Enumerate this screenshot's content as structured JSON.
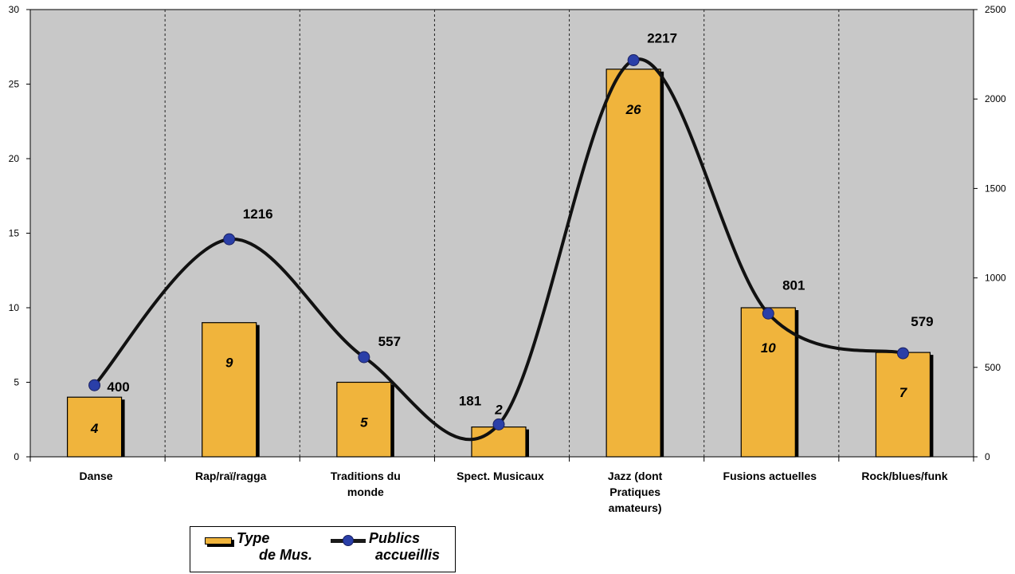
{
  "chart_data": {
    "type": "bar",
    "categories": [
      "Danse",
      "Rap/raï/ragga",
      "Traditions du monde",
      "Spect. Musicaux",
      "Jazz (dont Pratiques amateurs)",
      "Fusions actuelles",
      "Rock/blues/funk"
    ],
    "category_lines": [
      [
        "Danse"
      ],
      [
        "Rap/raï/ragga"
      ],
      [
        "Traditions du",
        "monde"
      ],
      [
        "Spect. Musicaux"
      ],
      [
        "Jazz (dont",
        "Pratiques",
        "amateurs)"
      ],
      [
        "Fusions actuelles"
      ],
      [
        "Rock/blues/funk"
      ]
    ],
    "series": [
      {
        "name": "Type de Mus.",
        "type": "bar",
        "axis": "left",
        "values": [
          4,
          9,
          5,
          2,
          26,
          10,
          7
        ],
        "labels": [
          "4",
          "9",
          "5",
          "2",
          "26",
          "10",
          "7"
        ],
        "color": "#f0b43c"
      },
      {
        "name": "Publics accueillis",
        "type": "line",
        "axis": "right",
        "values": [
          400,
          1216,
          557,
          181,
          2217,
          801,
          579
        ],
        "labels": [
          "400",
          "1216",
          "557",
          "181",
          "2217",
          "801",
          "579"
        ],
        "line_color": "#111111",
        "marker_color": "#2a3fa8"
      }
    ],
    "y_left": {
      "min": 0,
      "max": 30,
      "ticks": [
        "0",
        "5",
        "10",
        "15",
        "20",
        "25",
        "30"
      ]
    },
    "y_right": {
      "min": 0,
      "max": 2500,
      "ticks": [
        "0",
        "500",
        "1000",
        "1500",
        "2000",
        "2500"
      ]
    },
    "plot_background": "#c8c8c8",
    "grid": "vertical dashed separators",
    "legend_position": "bottom-left"
  },
  "legend": {
    "bar_label_line1": "Type",
    "bar_label_line2": "de Mus.",
    "line_label_line1": "Publics",
    "line_label_line2": "accueillis"
  }
}
